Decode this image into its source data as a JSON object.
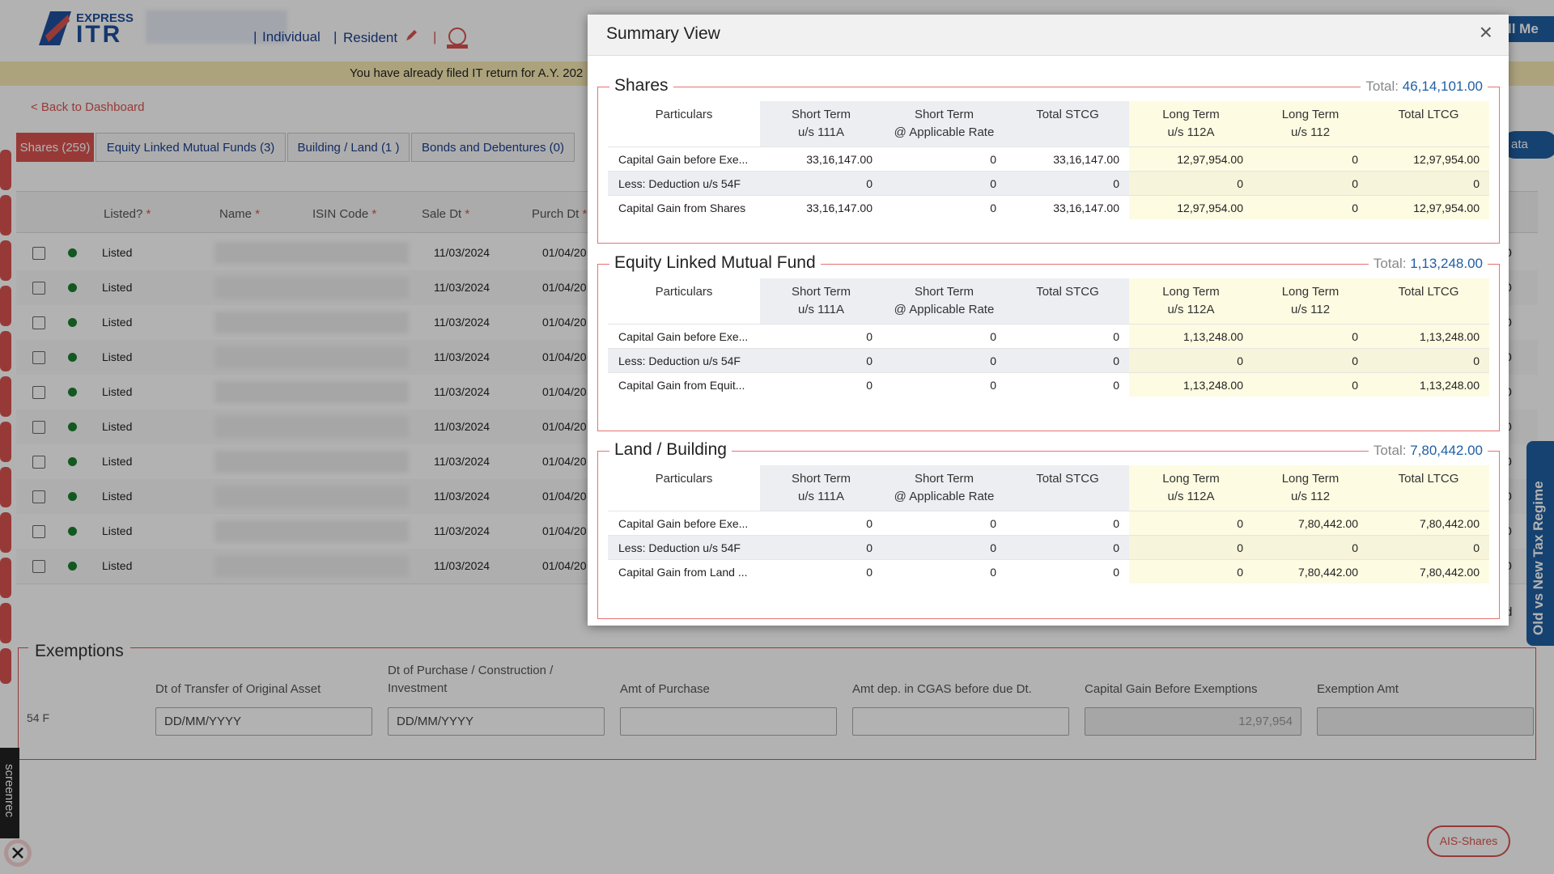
{
  "header": {
    "brand_top": "EXPRESS",
    "brand_bottom": "ITR",
    "taxpayer_type": "Individual",
    "residency": "Resident",
    "call_button": "ll Me"
  },
  "notice": "You have already filed IT return for A.Y. 202",
  "back_link": "< Back to Dashboard",
  "tabs": [
    "Shares (259)",
    "Equity Linked Mutual Funds (3)",
    "Building / Land (1 )",
    "Bonds and Debentures (0)"
  ],
  "side_button": "ata",
  "grid": {
    "headers": [
      "Listed?",
      "Name",
      "ISIN Code",
      "Sale Dt",
      "Purch Dt"
    ],
    "required_mark": "*",
    "rows": [
      [
        "Listed",
        "11/03/2024",
        "01/04/20",
        "0"
      ],
      [
        "Listed",
        "11/03/2024",
        "01/04/20",
        "0"
      ],
      [
        "Listed",
        "11/03/2024",
        "01/04/20",
        "0"
      ],
      [
        "Listed",
        "11/03/2024",
        "01/04/20",
        "0"
      ],
      [
        "Listed",
        "11/03/2024",
        "01/04/20",
        "0"
      ],
      [
        "Listed",
        "11/03/2024",
        "01/04/20",
        "0"
      ],
      [
        "Listed",
        "11/03/2024",
        "01/04/20",
        "0"
      ],
      [
        "Listed",
        "11/03/2024",
        "01/04/20",
        "0"
      ],
      [
        "Listed",
        "11/03/2024",
        "01/04/20",
        "0"
      ],
      [
        "Listed",
        "11/03/2024",
        "01/04/20",
        "0"
      ]
    ],
    "footer_fragment": "rd"
  },
  "exemptions": {
    "title": "Exemptions",
    "labels": [
      "Dt of Transfer of Original Asset",
      "Dt of Purchase / Construction / Investment",
      "Amt of Purchase",
      "Amt dep. in CGAS before due Dt.",
      "Capital Gain Before Exemptions",
      "Exemption Amt"
    ],
    "row_label": "54 F",
    "date_placeholder": "DD/MM/YYYY",
    "capital_gain": "12,97,954"
  },
  "regime_tab": "Old vs New Tax Regime",
  "ais_button": "AIS-Shares",
  "recorder": "screenrec",
  "summary": {
    "title": "Summary View",
    "close": "×",
    "total_label": "Total:",
    "column_headers": [
      [
        "Particulars"
      ],
      [
        "Short Term",
        "u/s 111A"
      ],
      [
        "Short Term",
        "@ Applicable Rate"
      ],
      [
        "Total STCG"
      ],
      [
        "Long Term",
        "u/s 112A"
      ],
      [
        "Long Term",
        "u/s 112"
      ],
      [
        "Total LTCG"
      ]
    ],
    "sections": [
      {
        "title": "Shares",
        "total": "46,14,101.00",
        "rows": [
          {
            "label": "Capital Gain before Exe...",
            "values": [
              "33,16,147.00",
              "0",
              "33,16,147.00",
              "12,97,954.00",
              "0",
              "12,97,954.00"
            ]
          },
          {
            "label": "Less: Deduction u/s 54F",
            "values": [
              "0",
              "0",
              "0",
              "0",
              "0",
              "0"
            ]
          },
          {
            "label": "Capital Gain from Shares",
            "values": [
              "33,16,147.00",
              "0",
              "33,16,147.00",
              "12,97,954.00",
              "0",
              "12,97,954.00"
            ]
          }
        ]
      },
      {
        "title": "Equity Linked Mutual Fund",
        "total": "1,13,248.00",
        "rows": [
          {
            "label": "Capital Gain before Exe...",
            "values": [
              "0",
              "0",
              "0",
              "1,13,248.00",
              "0",
              "1,13,248.00"
            ]
          },
          {
            "label": "Less: Deduction u/s 54F",
            "values": [
              "0",
              "0",
              "0",
              "0",
              "0",
              "0"
            ]
          },
          {
            "label": "Capital Gain from Equit...",
            "values": [
              "0",
              "0",
              "0",
              "1,13,248.00",
              "0",
              "1,13,248.00"
            ]
          }
        ]
      },
      {
        "title": "Land / Building",
        "total": "7,80,442.00",
        "rows": [
          {
            "label": "Capital Gain before Exe...",
            "values": [
              "0",
              "0",
              "0",
              "0",
              "7,80,442.00",
              "7,80,442.00"
            ]
          },
          {
            "label": "Less: Deduction u/s 54F",
            "values": [
              "0",
              "0",
              "0",
              "0",
              "0",
              "0"
            ]
          },
          {
            "label": "Capital Gain from Land ...",
            "values": [
              "0",
              "0",
              "0",
              "0",
              "7,80,442.00",
              "7,80,442.00"
            ]
          }
        ]
      }
    ]
  }
}
